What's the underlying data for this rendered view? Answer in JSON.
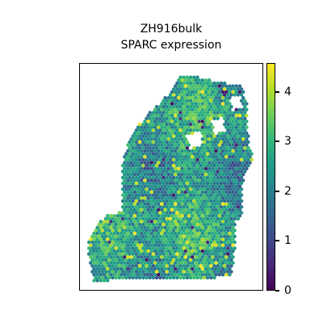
{
  "chart_data": {
    "type": "scatter",
    "subtype": "spatial hexagonal spot map",
    "title_lines": [
      "ZH916bulk",
      "SPARC expression"
    ],
    "colormap": "viridis",
    "colorbar": {
      "ticks": [
        0,
        1,
        2,
        3,
        4
      ],
      "tick_labels": [
        "0",
        "1",
        "2",
        "3",
        "4"
      ],
      "range": [
        0,
        4.5
      ]
    },
    "axes": {
      "visible": false,
      "grid": false
    },
    "dominant_value_range": [
      1.5,
      3.5
    ],
    "low_value_outlier_count_approx": 15,
    "high_value_max_approx": 4.5
  },
  "colors": {
    "viridis": [
      "#440154",
      "#482878",
      "#3e4989",
      "#31688e",
      "#26828e",
      "#1f9e89",
      "#35b779",
      "#6ece58",
      "#b5de2b",
      "#fde725"
    ]
  }
}
